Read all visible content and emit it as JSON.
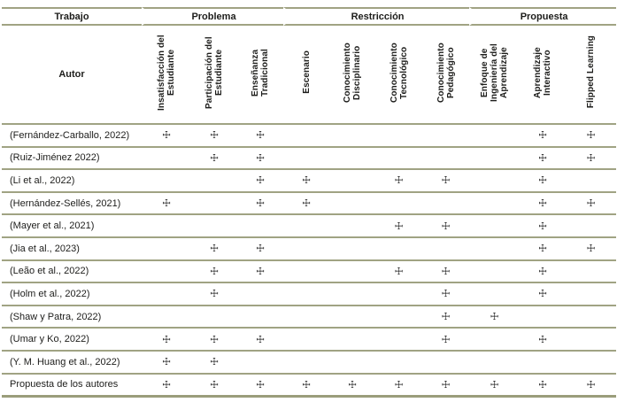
{
  "table": {
    "groups": [
      {
        "label": "Trabajo"
      },
      {
        "label": "Problema"
      },
      {
        "label": "Restricción"
      },
      {
        "label": "Propuesta"
      }
    ],
    "author_header": "Autor",
    "columns": [
      "Insatisfacción del Estudiante",
      "Participación del Estudiante",
      "Enseñanza Tradicional",
      "Escenario",
      "Conocimiento Disciplinario",
      "Conocimiento Tecnológico",
      "Conocimiento Pedagógico",
      "Enfoque de Ingeniería del Aprendizaje",
      "Aprendizaje Interactivo",
      "Flipped Learning"
    ],
    "mark_symbol": "☩",
    "rows": [
      {
        "author": "(Fernández-Carballo, 2022)",
        "marks": [
          1,
          1,
          1,
          0,
          0,
          0,
          0,
          0,
          1,
          1
        ]
      },
      {
        "author": "(Ruiz-Jiménez 2022)",
        "marks": [
          0,
          1,
          1,
          0,
          0,
          0,
          0,
          0,
          1,
          1
        ]
      },
      {
        "author": "(Li et al., 2022)",
        "marks": [
          0,
          0,
          1,
          1,
          0,
          1,
          1,
          0,
          1,
          0
        ]
      },
      {
        "author": "(Hernández-Sellés, 2021)",
        "marks": [
          1,
          0,
          1,
          1,
          0,
          0,
          0,
          0,
          1,
          1
        ]
      },
      {
        "author": "(Mayer et al., 2021)",
        "marks": [
          0,
          0,
          0,
          0,
          0,
          1,
          1,
          0,
          1,
          0
        ]
      },
      {
        "author": "(Jia et al., 2023)",
        "marks": [
          0,
          1,
          1,
          0,
          0,
          0,
          0,
          0,
          1,
          1
        ]
      },
      {
        "author": "(Leão et al., 2022)",
        "marks": [
          0,
          1,
          1,
          0,
          0,
          1,
          1,
          0,
          1,
          0
        ]
      },
      {
        "author": "(Holm et al., 2022)",
        "marks": [
          0,
          1,
          0,
          0,
          0,
          0,
          1,
          0,
          1,
          0
        ]
      },
      {
        "author": "(Shaw y Patra, 2022)",
        "marks": [
          0,
          0,
          0,
          0,
          0,
          0,
          1,
          1,
          0,
          0
        ]
      },
      {
        "author": "(Umar y Ko, 2022)",
        "marks": [
          1,
          1,
          1,
          0,
          0,
          0,
          1,
          0,
          1,
          0
        ]
      },
      {
        "author": "(Y. M. Huang et al., 2022)",
        "marks": [
          1,
          1,
          0,
          0,
          0,
          0,
          0,
          0,
          0,
          0
        ]
      },
      {
        "author": "Propuesta de los autores",
        "marks": [
          1,
          1,
          1,
          1,
          1,
          1,
          1,
          1,
          1,
          1
        ]
      }
    ]
  },
  "colors": {
    "rule": "#a0a383",
    "rule_heavy": "#9a9d7b",
    "text": "#1d1d1b",
    "mark": "#111111",
    "background": "#ffffff"
  }
}
